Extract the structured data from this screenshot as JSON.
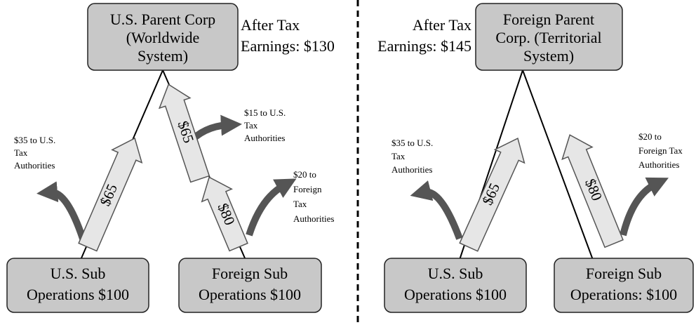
{
  "left": {
    "parent": {
      "lines": [
        "U.S. Parent Corp",
        "(Worldwide",
        "System)"
      ]
    },
    "after_tax": [
      "After Tax",
      "Earnings: $130"
    ],
    "us_sub": {
      "lines": [
        "U.S. Sub",
        "Operations $100"
      ]
    },
    "foreign_sub": {
      "lines": [
        "Foreign Sub",
        "Operations $100"
      ]
    },
    "arrows": [
      "$65",
      "$65",
      "$80"
    ],
    "notes": [
      [
        "$35 to U.S.",
        "Tax",
        "Authorities"
      ],
      [
        "$15 to U.S.",
        "Tax",
        "Authorities"
      ],
      [
        "$20 to",
        "Foreign",
        "Tax",
        "Authorities"
      ]
    ]
  },
  "right": {
    "parent": {
      "lines": [
        "Foreign Parent",
        "Corp. (Territorial",
        "System)"
      ]
    },
    "after_tax": [
      "After Tax",
      "Earnings: $145"
    ],
    "us_sub": {
      "lines": [
        "U.S. Sub",
        "Operations $100"
      ]
    },
    "foreign_sub": {
      "lines": [
        "Foreign Sub",
        "Operations: $100"
      ]
    },
    "arrows": [
      "$65",
      "$80"
    ],
    "notes": [
      [
        "$35 to U.S.",
        "Tax",
        "Authorities"
      ],
      [
        "$20 to",
        "Foreign Tax",
        "Authorities"
      ]
    ]
  }
}
